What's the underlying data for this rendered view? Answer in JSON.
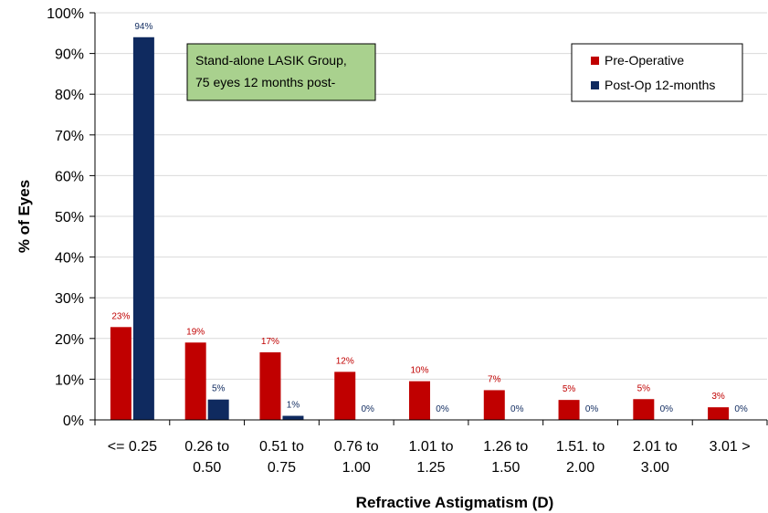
{
  "chart_data": {
    "type": "bar",
    "title": "",
    "xlabel": "Refractive Astigmatism (D)",
    "ylabel": "% of Eyes",
    "ylim": [
      0,
      100
    ],
    "yticks": [
      "0%",
      "10%",
      "20%",
      "30%",
      "40%",
      "50%",
      "60%",
      "70%",
      "80%",
      "90%",
      "100%"
    ],
    "yticks_values": [
      0,
      10,
      20,
      30,
      40,
      50,
      60,
      70,
      80,
      90,
      100
    ],
    "grid": true,
    "legend_position": "top-right",
    "categories": [
      [
        "<= 0.25"
      ],
      [
        "0.26 to",
        "0.50"
      ],
      [
        "0.51 to",
        "0.75"
      ],
      [
        "0.76 to",
        "1.00"
      ],
      [
        "1.01 to",
        "1.25"
      ],
      [
        "1.26 to",
        "1.50"
      ],
      [
        "1.51. to",
        "2.00"
      ],
      [
        "2.01 to",
        "3.00"
      ],
      [
        "3.01 >"
      ]
    ],
    "series": [
      {
        "name": "Pre-Operative",
        "color": "#c00000",
        "values": [
          22.8,
          19,
          16.6,
          11.8,
          9.5,
          7.3,
          4.9,
          5.1,
          3.1
        ],
        "labels": [
          "23%",
          "19%",
          "17%",
          "12%",
          "10%",
          "7%",
          "5%",
          "5%",
          "3%"
        ]
      },
      {
        "name": "Post-Op 12-months",
        "color": "#0f2a5f",
        "values": [
          94,
          5,
          1,
          0,
          0,
          0,
          0,
          0,
          0
        ],
        "labels": [
          "94%",
          "5%",
          "1%",
          "0%",
          "0%",
          "0%",
          "0%",
          "0%",
          "0%"
        ]
      }
    ],
    "annotation": {
      "lines": [
        "Stand-alone LASIK Group,",
        "75 eyes 12 months post-"
      ],
      "background": "#a9d18e"
    }
  }
}
